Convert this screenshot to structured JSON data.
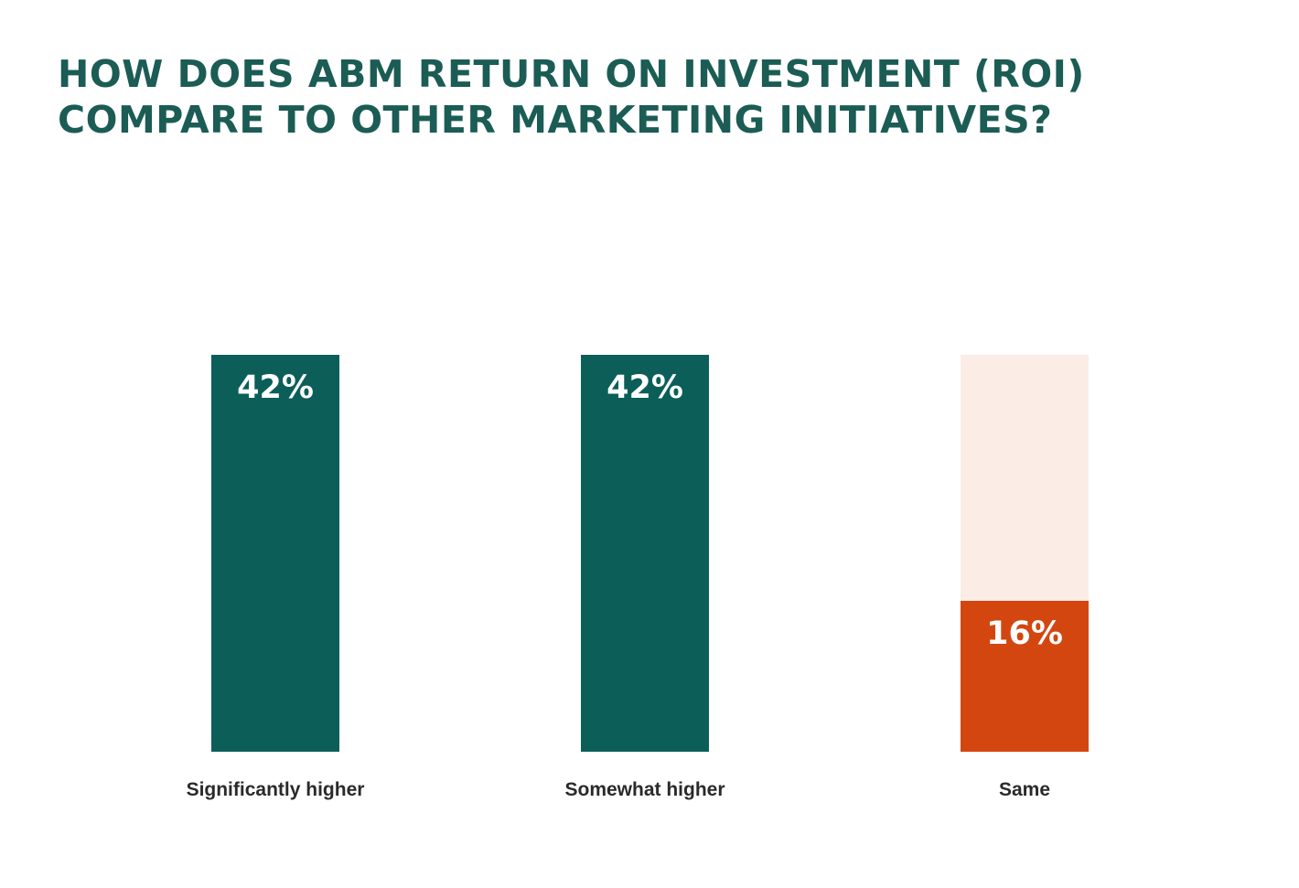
{
  "chart_data": {
    "type": "bar",
    "title_lines": [
      "HOW DOES ABM RETURN ON INVESTMENT (ROI)",
      "COMPARE TO OTHER MARKETING INITIATIVES?"
    ],
    "categories": [
      "Significantly higher",
      "Somewhat higher",
      "Same"
    ],
    "values": [
      42,
      42,
      16
    ],
    "value_labels": [
      "42%",
      "42%",
      "16%"
    ],
    "ylim": [
      0,
      42
    ],
    "colors": {
      "primary": "#0b5f58",
      "highlight": "#d4460f",
      "highlight_track": "#fbece5",
      "title": "#1b5c55",
      "label": "#2a2a2a"
    }
  }
}
